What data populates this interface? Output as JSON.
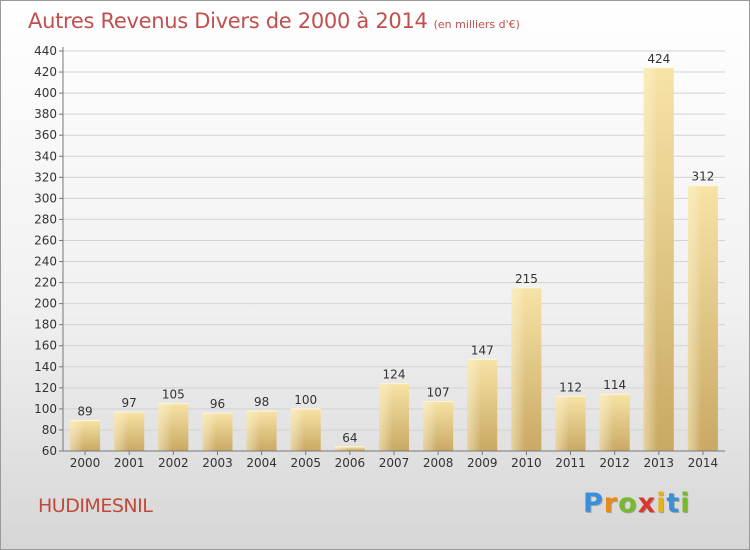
{
  "title": "Autres Revenus Divers de 2000 à 2014",
  "subtitle": "(en milliers d'€)",
  "commune": "HUDIMESNIL",
  "logo": {
    "letters": [
      "P",
      "r",
      "o",
      "x",
      "i",
      "t",
      "i"
    ],
    "colors": [
      "#3a8fd8",
      "#e88a1a",
      "#7ab82e",
      "#d8392b",
      "#e3b21c",
      "#3a8fd8",
      "#7ab82e"
    ]
  },
  "chart_data": {
    "type": "bar",
    "categories": [
      "2000",
      "2001",
      "2002",
      "2003",
      "2004",
      "2005",
      "2006",
      "2007",
      "2008",
      "2009",
      "2010",
      "2011",
      "2012",
      "2013",
      "2014"
    ],
    "values": [
      89,
      97,
      105,
      96,
      98,
      100,
      64,
      124,
      107,
      147,
      215,
      112,
      114,
      424,
      312
    ],
    "ylim": [
      60,
      440
    ],
    "yticks": [
      60,
      80,
      100,
      120,
      140,
      160,
      180,
      200,
      220,
      240,
      260,
      280,
      300,
      320,
      340,
      360,
      380,
      400,
      420,
      440
    ],
    "grid": true,
    "bar_color": "#ebcf83"
  }
}
